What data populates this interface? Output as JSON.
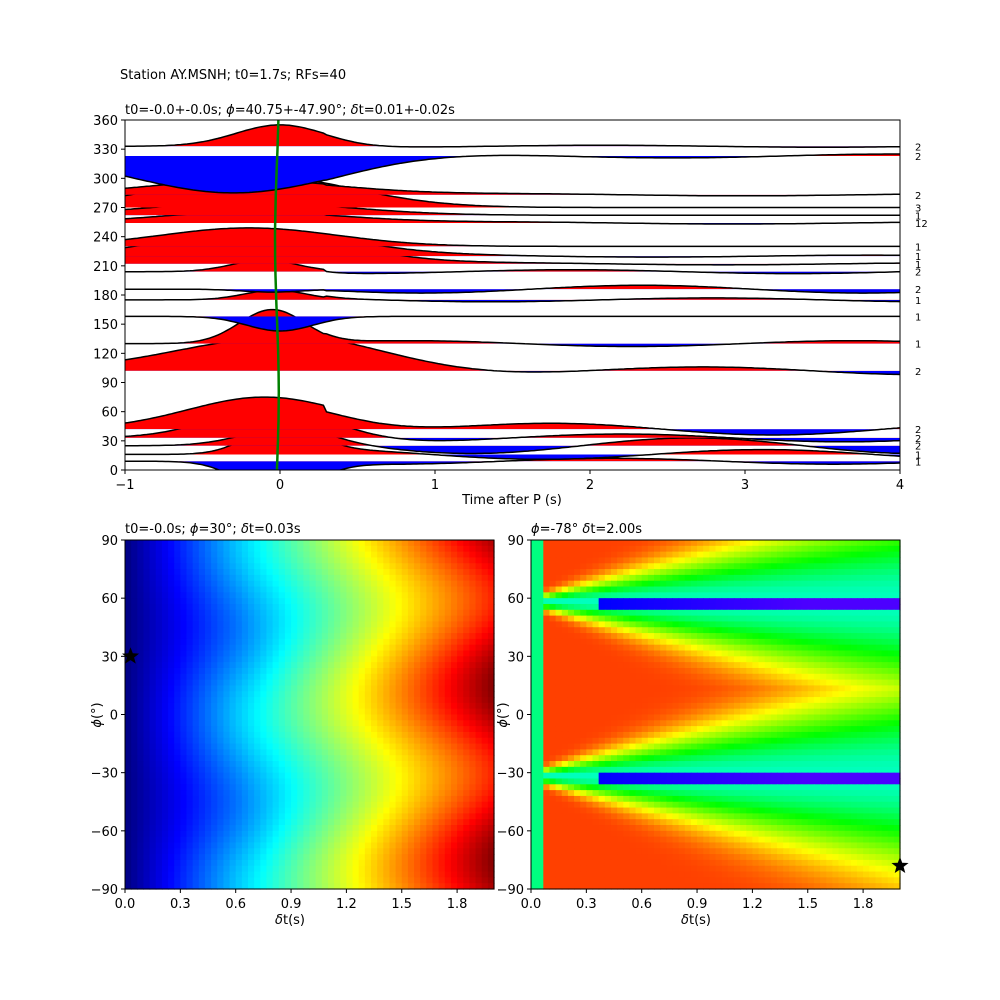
{
  "figure_title": "Station AY.MSNH; t0=1.7s; RFs=40",
  "chart_data": [
    {
      "type": "line",
      "title_parts": [
        "t0=-0.0+-0.0s; ",
        "ϕ",
        "=40.75+-47.90°; ",
        "δ",
        "t=0.01+-0.02s"
      ],
      "xlabel": "Time after P (s)",
      "ylabel": "",
      "xlim": [
        -1,
        4
      ],
      "ylim": [
        0,
        360
      ],
      "x_ticks": [
        "−1",
        "0",
        "1",
        "2",
        "3",
        "4"
      ],
      "y_ticks": [
        "0",
        "30",
        "60",
        "90",
        "120",
        "150",
        "180",
        "210",
        "240",
        "270",
        "300",
        "330",
        "360"
      ],
      "fill_positive_color": "#ff0000",
      "fill_negative_color": "#0000ff",
      "pick_line_color": "#008000",
      "traces": [
        {
          "base": 9,
          "amp": -35,
          "peak": -0.02,
          "width": 0.32,
          "tail": -0.03,
          "side_label": "1"
        },
        {
          "base": 16,
          "amp": 29,
          "peak": 0.0,
          "width": 0.3,
          "tail": 0.05,
          "side_label": "1"
        },
        {
          "base": 25,
          "amp": 16,
          "peak": 0.0,
          "width": 0.38,
          "tail": 0.08,
          "side_label": "2"
        },
        {
          "base": 33,
          "amp": 31,
          "peak": -0.05,
          "width": 0.55,
          "tail": 0.04,
          "side_label": "2"
        },
        {
          "base": 42,
          "amp": 33,
          "peak": -0.1,
          "width": 0.7,
          "tail": 0.06,
          "side_label": "2"
        },
        {
          "base": 102,
          "amp": 34,
          "peak": 0.0,
          "width": 0.95,
          "tail": -0.04,
          "side_label": "2"
        },
        {
          "base": 130,
          "amp": 35,
          "peak": -0.05,
          "width": 0.3,
          "tail": 0.03,
          "side_label": "1"
        },
        {
          "base": 158,
          "amp": -15,
          "peak": 0.0,
          "width": 0.3,
          "tail": 0.0,
          "side_label": "1"
        },
        {
          "base": 175,
          "amp": 10,
          "peak": -0.03,
          "width": 0.28,
          "tail": 0.02,
          "side_label": "1"
        },
        {
          "base": 186,
          "amp": -3,
          "peak": -0.05,
          "width": 0.28,
          "tail": 0.04,
          "side_label": "2"
        },
        {
          "base": 204,
          "amp": 12,
          "peak": -0.1,
          "width": 0.3,
          "tail": 0.02,
          "side_label": "2"
        },
        {
          "base": 212,
          "amp": 33,
          "peak": -0.15,
          "width": 0.8,
          "tail": 0.01,
          "side_label": "1"
        },
        {
          "base": 220,
          "amp": 27,
          "peak": -0.15,
          "width": 0.8,
          "tail": 0.01,
          "side_label": "1"
        },
        {
          "base": 230,
          "amp": 19,
          "peak": -0.2,
          "width": 0.8,
          "tail": 0.0,
          "side_label": "1"
        },
        {
          "base": 254,
          "amp": 12,
          "peak": -0.15,
          "width": 0.85,
          "tail": -0.01,
          "side_label": "12"
        },
        {
          "base": 262,
          "amp": 13,
          "peak": -0.2,
          "width": 0.9,
          "tail": 0.0,
          "side_label": "1"
        },
        {
          "base": 270,
          "amp": 33,
          "peak": -0.15,
          "width": 0.85,
          "tail": 0.0,
          "side_label": "3"
        },
        {
          "base": 283,
          "amp": 15,
          "peak": -0.2,
          "width": 0.9,
          "tail": 0.01,
          "side_label": "2"
        },
        {
          "base": 323,
          "amp": -38,
          "peak": -0.3,
          "width": 0.9,
          "tail": 0.02,
          "side_label": "2"
        },
        {
          "base": 333,
          "amp": 22,
          "peak": 0.0,
          "width": 0.4,
          "tail": -0.01,
          "side_label": "2"
        }
      ]
    },
    {
      "type": "heatmap",
      "title_parts": [
        "t0=-0.0s; ",
        "ϕ",
        "=30°; ",
        "δ",
        "t=0.03s"
      ],
      "xlabel_parts": [
        "δ",
        "t(s)"
      ],
      "ylabel_parts": [
        "ϕ",
        "(°)"
      ],
      "xlim": [
        0,
        2
      ],
      "ylim": [
        -90,
        90
      ],
      "x_ticks": [
        "0.0",
        "0.3",
        "0.6",
        "0.9",
        "1.2",
        "1.5",
        "1.8"
      ],
      "y_ticks": [
        "−90",
        "−60",
        "−30",
        "0",
        "30",
        "60",
        "90"
      ],
      "star": {
        "dt": 0.03,
        "phi": 30
      },
      "colormap": "jet"
    },
    {
      "type": "heatmap",
      "title_parts": [
        "ϕ",
        "=-78° ",
        "δ",
        "t=2.00s"
      ],
      "xlabel_parts": [
        "δ",
        "t(s)"
      ],
      "ylabel_parts": [
        "ϕ",
        "(°)"
      ],
      "xlim": [
        0,
        2
      ],
      "ylim": [
        -90,
        90
      ],
      "x_ticks": [
        "0.0",
        "0.3",
        "0.6",
        "0.9",
        "1.2",
        "1.5",
        "1.8"
      ],
      "y_ticks": [
        "−90",
        "−60",
        "−30",
        "0",
        "30",
        "60",
        "90"
      ],
      "star": {
        "dt": 2.0,
        "phi": -78
      },
      "colormap": "hsv-like"
    }
  ]
}
